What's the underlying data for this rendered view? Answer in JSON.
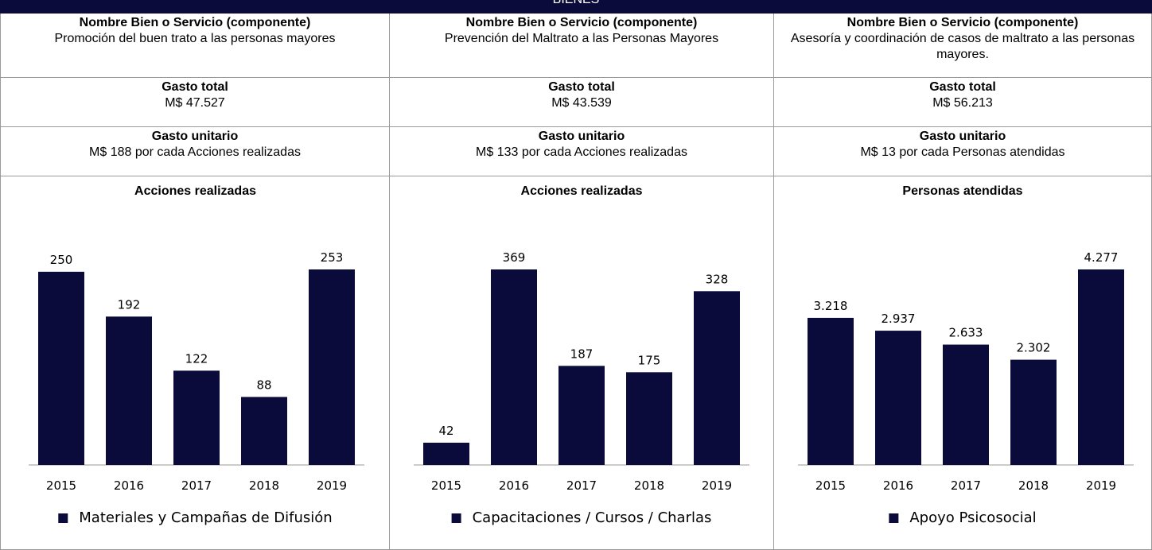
{
  "header": {
    "title": "BIENES"
  },
  "columns": [
    {
      "component_label": "Nombre Bien o Servicio (componente)",
      "component": "Promoción del buen trato a las personas mayores",
      "total_label": "Gasto total",
      "total": "M$ 47.527",
      "unit_label": "Gasto unitario",
      "unit": "M$ 188 por cada Acciones realizadas",
      "chart_data": {
        "type": "bar",
        "title": "Acciones realizadas",
        "categories": [
          "2015",
          "2016",
          "2017",
          "2018",
          "2019"
        ],
        "series": [
          {
            "name": "Materiales y Campañas de Difusión",
            "color": "#0b0b3b",
            "values": [
              250,
              192,
              122,
              88,
              253
            ]
          }
        ]
      }
    },
    {
      "component_label": "Nombre Bien o Servicio (componente)",
      "component": "Prevención del Maltrato a las Personas Mayores",
      "total_label": "Gasto total",
      "total": "M$ 43.539",
      "unit_label": "Gasto unitario",
      "unit": "M$ 133 por cada Acciones realizadas",
      "chart_data": {
        "type": "bar",
        "title": "Acciones realizadas",
        "categories": [
          "2015",
          "2016",
          "2017",
          "2018",
          "2019"
        ],
        "series": [
          {
            "name": "Capacitaciones / Cursos / Charlas",
            "color": "#0b0b3b",
            "values": [
              42,
              369,
              187,
              175,
              328
            ]
          }
        ]
      }
    },
    {
      "component_label": "Nombre Bien o Servicio (componente)",
      "component": "Asesoría y coordinación de casos de maltrato a las personas mayores.",
      "total_label": "Gasto total",
      "total": "M$ 56.213",
      "unit_label": "Gasto unitario",
      "unit": "M$ 13 por cada Personas atendidas",
      "chart_data": {
        "type": "bar",
        "title": "Personas atendidas",
        "categories": [
          "2015",
          "2016",
          "2017",
          "2018",
          "2019"
        ],
        "series": [
          {
            "name": "Apoyo Psicosocial",
            "color": "#0b0b3b",
            "values": [
              3218,
              2937,
              2633,
              2302,
              4277
            ],
            "value_labels": [
              "3.218",
              "2.937",
              "2.633",
              "2.302",
              "4.277"
            ]
          }
        ]
      }
    }
  ]
}
